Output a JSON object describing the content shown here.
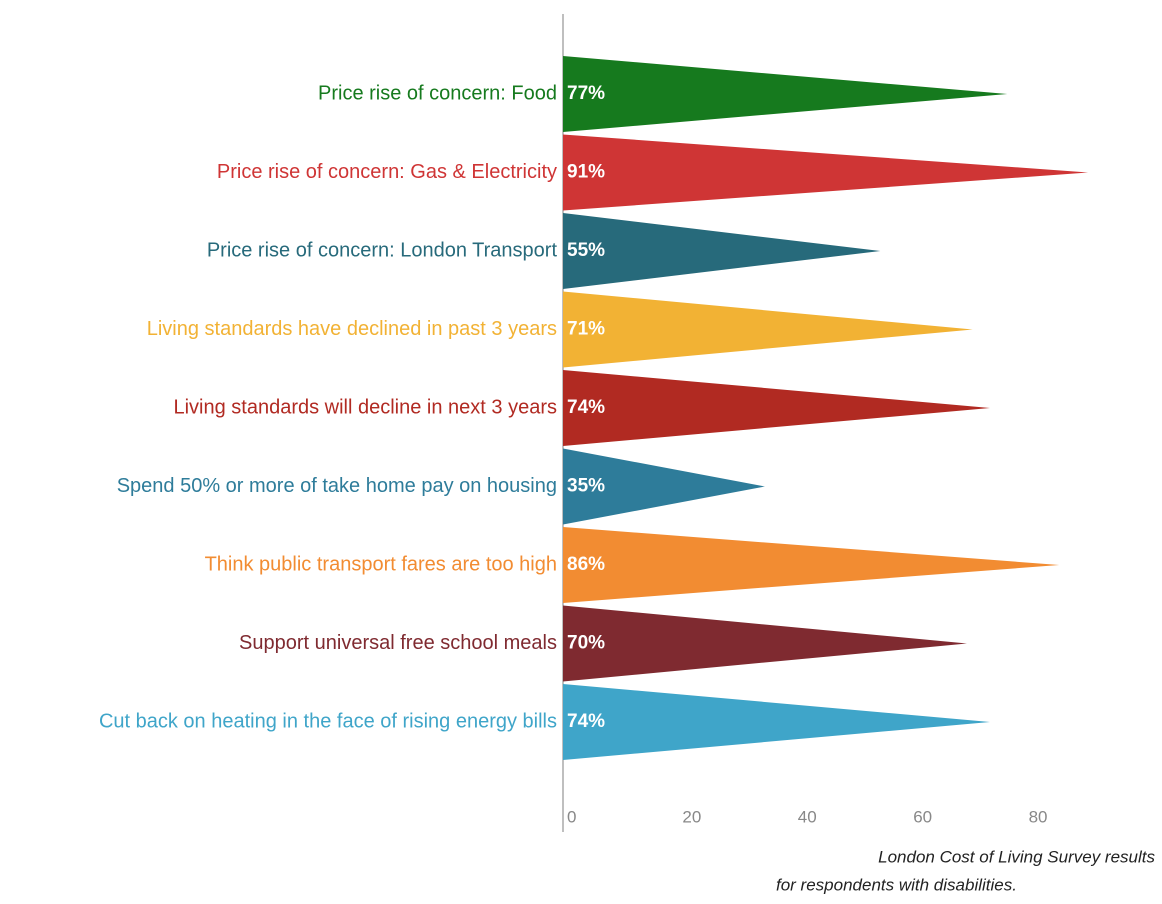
{
  "chart_data": {
    "type": "bar",
    "orientation": "horizontal",
    "categories": [
      "Price rise of concern: Food",
      "Price rise of concern: Gas & Electricity",
      "Price rise of concern: London Transport",
      "Living standards have declined in past 3 years",
      "Living standards will decline in next 3 years",
      "Spend 50% or more of take home pay on housing",
      "Think public transport fares are too high",
      "Support universal free school meals",
      "Cut back on heating in the face of rising energy bills"
    ],
    "values": [
      77,
      91,
      55,
      71,
      74,
      35,
      86,
      70,
      74
    ],
    "value_labels": [
      "77%",
      "91%",
      "55%",
      "71%",
      "74%",
      "35%",
      "86%",
      "70%",
      "74%"
    ],
    "colors": [
      "#167a1e",
      "#cf3535",
      "#276a7b",
      "#f2b234",
      "#b12a22",
      "#2e7c9a",
      "#f28c32",
      "#7f2a30",
      "#3fa5c9"
    ],
    "xlim": [
      0,
      100
    ],
    "xticks": [
      0,
      20,
      40,
      60,
      80
    ],
    "grid": false,
    "caption": [
      "London Cost of Living Survey results",
      "for respondents with  disabilities."
    ]
  }
}
